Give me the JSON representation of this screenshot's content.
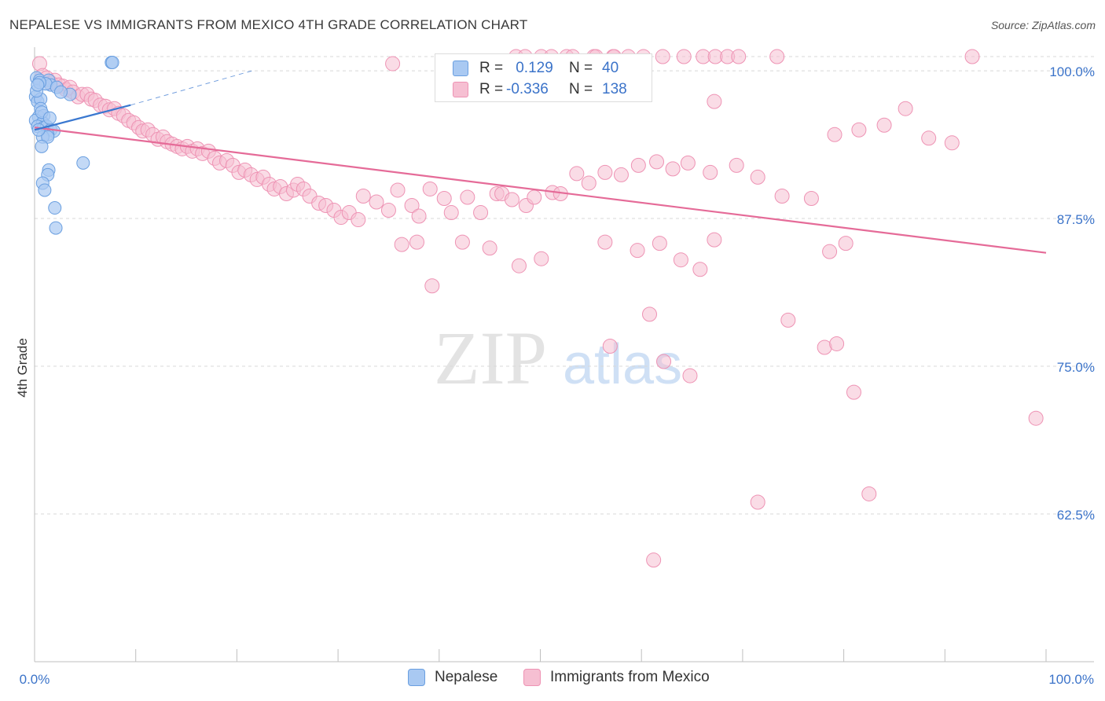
{
  "title": "NEPALESE VS IMMIGRANTS FROM MEXICO 4TH GRADE CORRELATION CHART",
  "source": "Source: ZipAtlas.com",
  "watermark": {
    "zip": "ZIP",
    "atlas": "atlas"
  },
  "legend": {
    "row1": {
      "r_label": "R =",
      "r_value": "0.129",
      "n_label": "N =",
      "n_value": "40"
    },
    "row2": {
      "r_label": "R =",
      "r_value": "-0.336",
      "n_label": "N =",
      "n_value": "138"
    }
  },
  "bottom_legend": {
    "series1": "Nepalese",
    "series2": "Immigrants from Mexico"
  },
  "colors": {
    "blue_fill": "#a9c9f2",
    "blue_stroke": "#6a9fe0",
    "blue_line": "#3a78d0",
    "pink_fill": "#f6bfd2",
    "pink_stroke": "#ee93b4",
    "pink_line": "#e56b98",
    "grid": "#d8d8d8",
    "axis_text": "#3b73c9"
  },
  "chart_data": {
    "type": "scatter",
    "title": "NEPALESE VS IMMIGRANTS FROM MEXICO 4TH GRADE CORRELATION CHART",
    "xlabel": "",
    "ylabel": "4th Grade",
    "xlim": [
      0,
      100
    ],
    "ylim": [
      50,
      102
    ],
    "x_tick_labels": [
      "0.0%",
      "100.0%"
    ],
    "y_ticks": [
      62.5,
      75.0,
      87.5,
      100.0
    ],
    "y_tick_labels": [
      "62.5%",
      "75.0%",
      "87.5%",
      "100.0%"
    ],
    "grid": true,
    "series": [
      {
        "name": "Nepalese",
        "R": 0.129,
        "N": 40,
        "trend": {
          "x": [
            0,
            9.5
          ],
          "y": [
            95.0,
            97.1
          ],
          "extended_x": [
            9.5,
            21.5
          ],
          "extended_y": [
            97.1,
            100.0
          ]
        },
        "points": [
          [
            0.2,
            99.4
          ],
          [
            0.5,
            99.2
          ],
          [
            1.4,
            99.2
          ],
          [
            1.6,
            98.8
          ],
          [
            7.6,
            100.7
          ],
          [
            7.7,
            100.7
          ],
          [
            0.1,
            97.8
          ],
          [
            0.3,
            97.4
          ],
          [
            0.6,
            97.6
          ],
          [
            0.6,
            96.8
          ],
          [
            0.4,
            96.1
          ],
          [
            0.9,
            96.2
          ],
          [
            0.1,
            95.8
          ],
          [
            0.8,
            95.6
          ],
          [
            0.3,
            95.3
          ],
          [
            0.9,
            95.2
          ],
          [
            1.2,
            95.3
          ],
          [
            1.6,
            95.0
          ],
          [
            1.9,
            94.9
          ],
          [
            1.3,
            94.6
          ],
          [
            0.8,
            94.4
          ],
          [
            1.3,
            94.4
          ],
          [
            0.7,
            93.6
          ],
          [
            4.8,
            92.2
          ],
          [
            1.4,
            91.6
          ],
          [
            1.3,
            91.2
          ],
          [
            0.8,
            90.5
          ],
          [
            1.0,
            89.9
          ],
          [
            2.0,
            88.4
          ],
          [
            2.1,
            86.7
          ],
          [
            0.2,
            98.3
          ],
          [
            1.1,
            98.9
          ],
          [
            2.2,
            98.6
          ],
          [
            3.5,
            98.0
          ],
          [
            0.5,
            99.0
          ],
          [
            0.7,
            96.5
          ],
          [
            1.5,
            96.0
          ],
          [
            0.3,
            98.8
          ],
          [
            2.6,
            98.2
          ],
          [
            0.4,
            95.0
          ]
        ]
      },
      {
        "name": "Immigrants from Mexico",
        "R": -0.336,
        "N": 138,
        "trend": {
          "x": [
            0,
            100
          ],
          "y": [
            95.2,
            84.6
          ]
        },
        "points": [
          [
            47.6,
            101.2
          ],
          [
            48.5,
            101.2
          ],
          [
            50.1,
            101.2
          ],
          [
            51.1,
            101.2
          ],
          [
            52.6,
            101.2
          ],
          [
            53.2,
            101.2
          ],
          [
            55.3,
            101.2
          ],
          [
            55.5,
            101.2
          ],
          [
            55.5,
            100.6
          ],
          [
            57.2,
            101.2
          ],
          [
            57.3,
            101.2
          ],
          [
            58.7,
            101.2
          ],
          [
            60.2,
            101.2
          ],
          [
            62.1,
            101.2
          ],
          [
            64.2,
            101.2
          ],
          [
            66.1,
            101.2
          ],
          [
            67.3,
            101.2
          ],
          [
            68.5,
            101.2
          ],
          [
            69.6,
            101.2
          ],
          [
            73.4,
            101.2
          ],
          [
            92.7,
            101.2
          ],
          [
            35.4,
            100.6
          ],
          [
            0.5,
            100.6
          ],
          [
            0.8,
            99.6
          ],
          [
            1.2,
            99.4
          ],
          [
            1.6,
            99.0
          ],
          [
            2.0,
            99.2
          ],
          [
            2.4,
            98.8
          ],
          [
            2.8,
            98.7
          ],
          [
            3.1,
            98.4
          ],
          [
            3.5,
            98.6
          ],
          [
            3.8,
            98.2
          ],
          [
            4.3,
            97.8
          ],
          [
            4.7,
            98.0
          ],
          [
            5.2,
            98.0
          ],
          [
            5.6,
            97.6
          ],
          [
            6.0,
            97.5
          ],
          [
            6.5,
            97.1
          ],
          [
            7.0,
            97.0
          ],
          [
            7.4,
            96.7
          ],
          [
            7.9,
            96.8
          ],
          [
            8.3,
            96.4
          ],
          [
            8.8,
            96.2
          ],
          [
            9.3,
            95.8
          ],
          [
            9.8,
            95.6
          ],
          [
            10.3,
            95.2
          ],
          [
            10.7,
            94.9
          ],
          [
            11.2,
            95.0
          ],
          [
            11.7,
            94.6
          ],
          [
            12.2,
            94.2
          ],
          [
            12.7,
            94.4
          ],
          [
            13.1,
            94.0
          ],
          [
            13.6,
            93.8
          ],
          [
            14.1,
            93.6
          ],
          [
            14.6,
            93.4
          ],
          [
            15.1,
            93.6
          ],
          [
            15.6,
            93.2
          ],
          [
            16.1,
            93.4
          ],
          [
            16.6,
            93.0
          ],
          [
            17.2,
            93.2
          ],
          [
            17.8,
            92.6
          ],
          [
            18.3,
            92.2
          ],
          [
            19.0,
            92.4
          ],
          [
            19.6,
            92.0
          ],
          [
            20.2,
            91.4
          ],
          [
            20.8,
            91.6
          ],
          [
            21.4,
            91.2
          ],
          [
            22.0,
            90.8
          ],
          [
            22.6,
            91.0
          ],
          [
            23.2,
            90.4
          ],
          [
            23.7,
            90.0
          ],
          [
            24.3,
            90.2
          ],
          [
            24.9,
            89.6
          ],
          [
            25.6,
            89.9
          ],
          [
            26.0,
            90.4
          ],
          [
            26.6,
            90.0
          ],
          [
            27.2,
            89.4
          ],
          [
            28.1,
            88.8
          ],
          [
            28.8,
            88.6
          ],
          [
            29.6,
            88.2
          ],
          [
            30.3,
            87.6
          ],
          [
            31.1,
            88.0
          ],
          [
            32.0,
            87.4
          ],
          [
            32.5,
            89.4
          ],
          [
            33.8,
            88.9
          ],
          [
            35.0,
            88.2
          ],
          [
            35.9,
            89.9
          ],
          [
            37.3,
            88.6
          ],
          [
            38.0,
            87.7
          ],
          [
            39.1,
            90.0
          ],
          [
            40.5,
            89.2
          ],
          [
            41.2,
            88.0
          ],
          [
            42.8,
            89.3
          ],
          [
            44.1,
            88.0
          ],
          [
            45.7,
            89.6
          ],
          [
            46.2,
            89.6
          ],
          [
            47.2,
            89.1
          ],
          [
            48.6,
            88.6
          ],
          [
            49.4,
            89.3
          ],
          [
            51.2,
            89.7
          ],
          [
            52.0,
            89.6
          ],
          [
            53.6,
            91.3
          ],
          [
            54.8,
            90.5
          ],
          [
            56.4,
            91.4
          ],
          [
            58.0,
            91.2
          ],
          [
            59.7,
            92.0
          ],
          [
            61.5,
            92.3
          ],
          [
            63.1,
            91.7
          ],
          [
            64.6,
            92.2
          ],
          [
            66.8,
            91.4
          ],
          [
            69.4,
            92.0
          ],
          [
            71.5,
            91.0
          ],
          [
            73.9,
            89.4
          ],
          [
            76.8,
            89.2
          ],
          [
            79.1,
            94.6
          ],
          [
            81.5,
            95.0
          ],
          [
            84.0,
            95.4
          ],
          [
            86.1,
            96.8
          ],
          [
            88.4,
            94.3
          ],
          [
            90.7,
            93.9
          ],
          [
            36.3,
            85.3
          ],
          [
            37.8,
            85.5
          ],
          [
            39.3,
            81.8
          ],
          [
            42.3,
            85.5
          ],
          [
            45.0,
            85.0
          ],
          [
            47.9,
            83.5
          ],
          [
            50.1,
            84.1
          ],
          [
            56.4,
            85.5
          ],
          [
            59.6,
            84.8
          ],
          [
            61.8,
            85.4
          ],
          [
            63.9,
            84.0
          ],
          [
            65.8,
            83.2
          ],
          [
            67.2,
            85.7
          ],
          [
            78.6,
            84.7
          ],
          [
            80.2,
            85.4
          ],
          [
            60.8,
            79.4
          ],
          [
            74.5,
            78.9
          ],
          [
            78.1,
            76.6
          ],
          [
            56.9,
            76.7
          ],
          [
            62.2,
            75.4
          ],
          [
            64.8,
            74.2
          ],
          [
            79.3,
            76.9
          ],
          [
            81.0,
            72.8
          ],
          [
            99.0,
            70.6
          ],
          [
            71.5,
            63.5
          ],
          [
            82.5,
            64.2
          ],
          [
            61.2,
            58.6
          ],
          [
            67.2,
            97.4
          ]
        ]
      }
    ]
  }
}
